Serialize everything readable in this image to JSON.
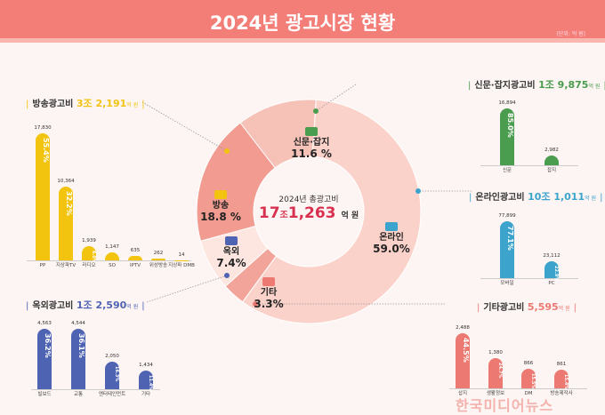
{
  "header": {
    "title": "2024년 광고시장 현황",
    "unit": "(단위: 억 원)"
  },
  "colors": {
    "broadcast": "#f2c40f",
    "outdoor": "#4f63b3",
    "print": "#4a9c4e",
    "online": "#3ba3cc",
    "other": "#ec7a72",
    "header": "#f37d77"
  },
  "donut": {
    "center_label": "2024년 총광고비",
    "total_jo": "17",
    "jo": "조",
    "total_eok": "1,263",
    "unit": "억 원",
    "segments": [
      {
        "name": "신문·잡지",
        "percent": 11.6,
        "label": "11.6 %",
        "color": "#f6c1b6",
        "icon": "printer-icon"
      },
      {
        "name": "온라인",
        "percent": 59.0,
        "label": "59.0%",
        "color": "#fbd2ca",
        "icon": "smartphone-icon"
      },
      {
        "name": "기타",
        "percent": 3.3,
        "label": "3.3%",
        "color": "#f3a49a",
        "icon": "mail-icon"
      },
      {
        "name": "옥외",
        "percent": 7.4,
        "label": "7.4%",
        "color": "#fde6e0",
        "icon": "billboard-icon"
      },
      {
        "name": "방송",
        "percent": 18.8,
        "label": "18.8 %",
        "color": "#f29b90",
        "icon": "tv-icon"
      }
    ]
  },
  "chart_data": [
    {
      "type": "bar",
      "title": "방송광고비",
      "total": "3조 2,191",
      "unit": "억 원",
      "color": "#f2c40f",
      "categories": [
        "PP",
        "지상파TV",
        "라디오",
        "SO",
        "IPTV",
        "위성방송",
        "지상파 DMB"
      ],
      "values": [
        17830,
        10364,
        1939,
        1147,
        635,
        262,
        14
      ],
      "value_labels": [
        "17,830",
        "10,364",
        "1,939",
        "1,147",
        "635",
        "262",
        "14"
      ],
      "percents": [
        "55.4%",
        "32.2%",
        "6.0%",
        "3.6%",
        "2.0%",
        "",
        ""
      ]
    },
    {
      "type": "bar",
      "title": "옥외광고비",
      "total": "1조 2,590",
      "unit": "억 원",
      "color": "#4f63b3",
      "categories": [
        "빌보드",
        "교통",
        "엔터테인먼트",
        "기타"
      ],
      "values": [
        4563,
        4544,
        2050,
        1434
      ],
      "value_labels": [
        "4,563",
        "4,544",
        "2,050",
        "1,434"
      ],
      "percents": [
        "36.2%",
        "36.1%",
        "16.3%",
        "11.4%"
      ]
    },
    {
      "type": "bar",
      "title": "신문·잡지광고비",
      "total": "1조 9,875",
      "unit": "억 원",
      "color": "#4a9c4e",
      "categories": [
        "신문",
        "잡지"
      ],
      "values": [
        16894,
        2982
      ],
      "value_labels": [
        "16,894",
        "2,982"
      ],
      "percents": [
        "85.0%",
        "15.0%"
      ]
    },
    {
      "type": "bar",
      "title": "온라인광고비",
      "total": "10조 1,011",
      "unit": "억 원",
      "color": "#3ba3cc",
      "categories": [
        "모바일",
        "PC"
      ],
      "values": [
        77899,
        23112
      ],
      "value_labels": [
        "77,899",
        "23,112"
      ],
      "percents": [
        "77.1%",
        "22.9%"
      ]
    },
    {
      "type": "bar",
      "title": "기타광고비",
      "total": "5,595",
      "unit": "억 원",
      "color": "#ec7a72",
      "categories": [
        "삽지",
        "생활정보",
        "DM",
        "방송제작사"
      ],
      "values": [
        2488,
        1380,
        866,
        861
      ],
      "value_labels": [
        "2,488",
        "1,380",
        "866",
        "861"
      ],
      "percents": [
        "44.5%",
        "24.7%",
        "15.5%",
        "15.4%"
      ]
    }
  ],
  "watermark": "한국미디어뉴스"
}
